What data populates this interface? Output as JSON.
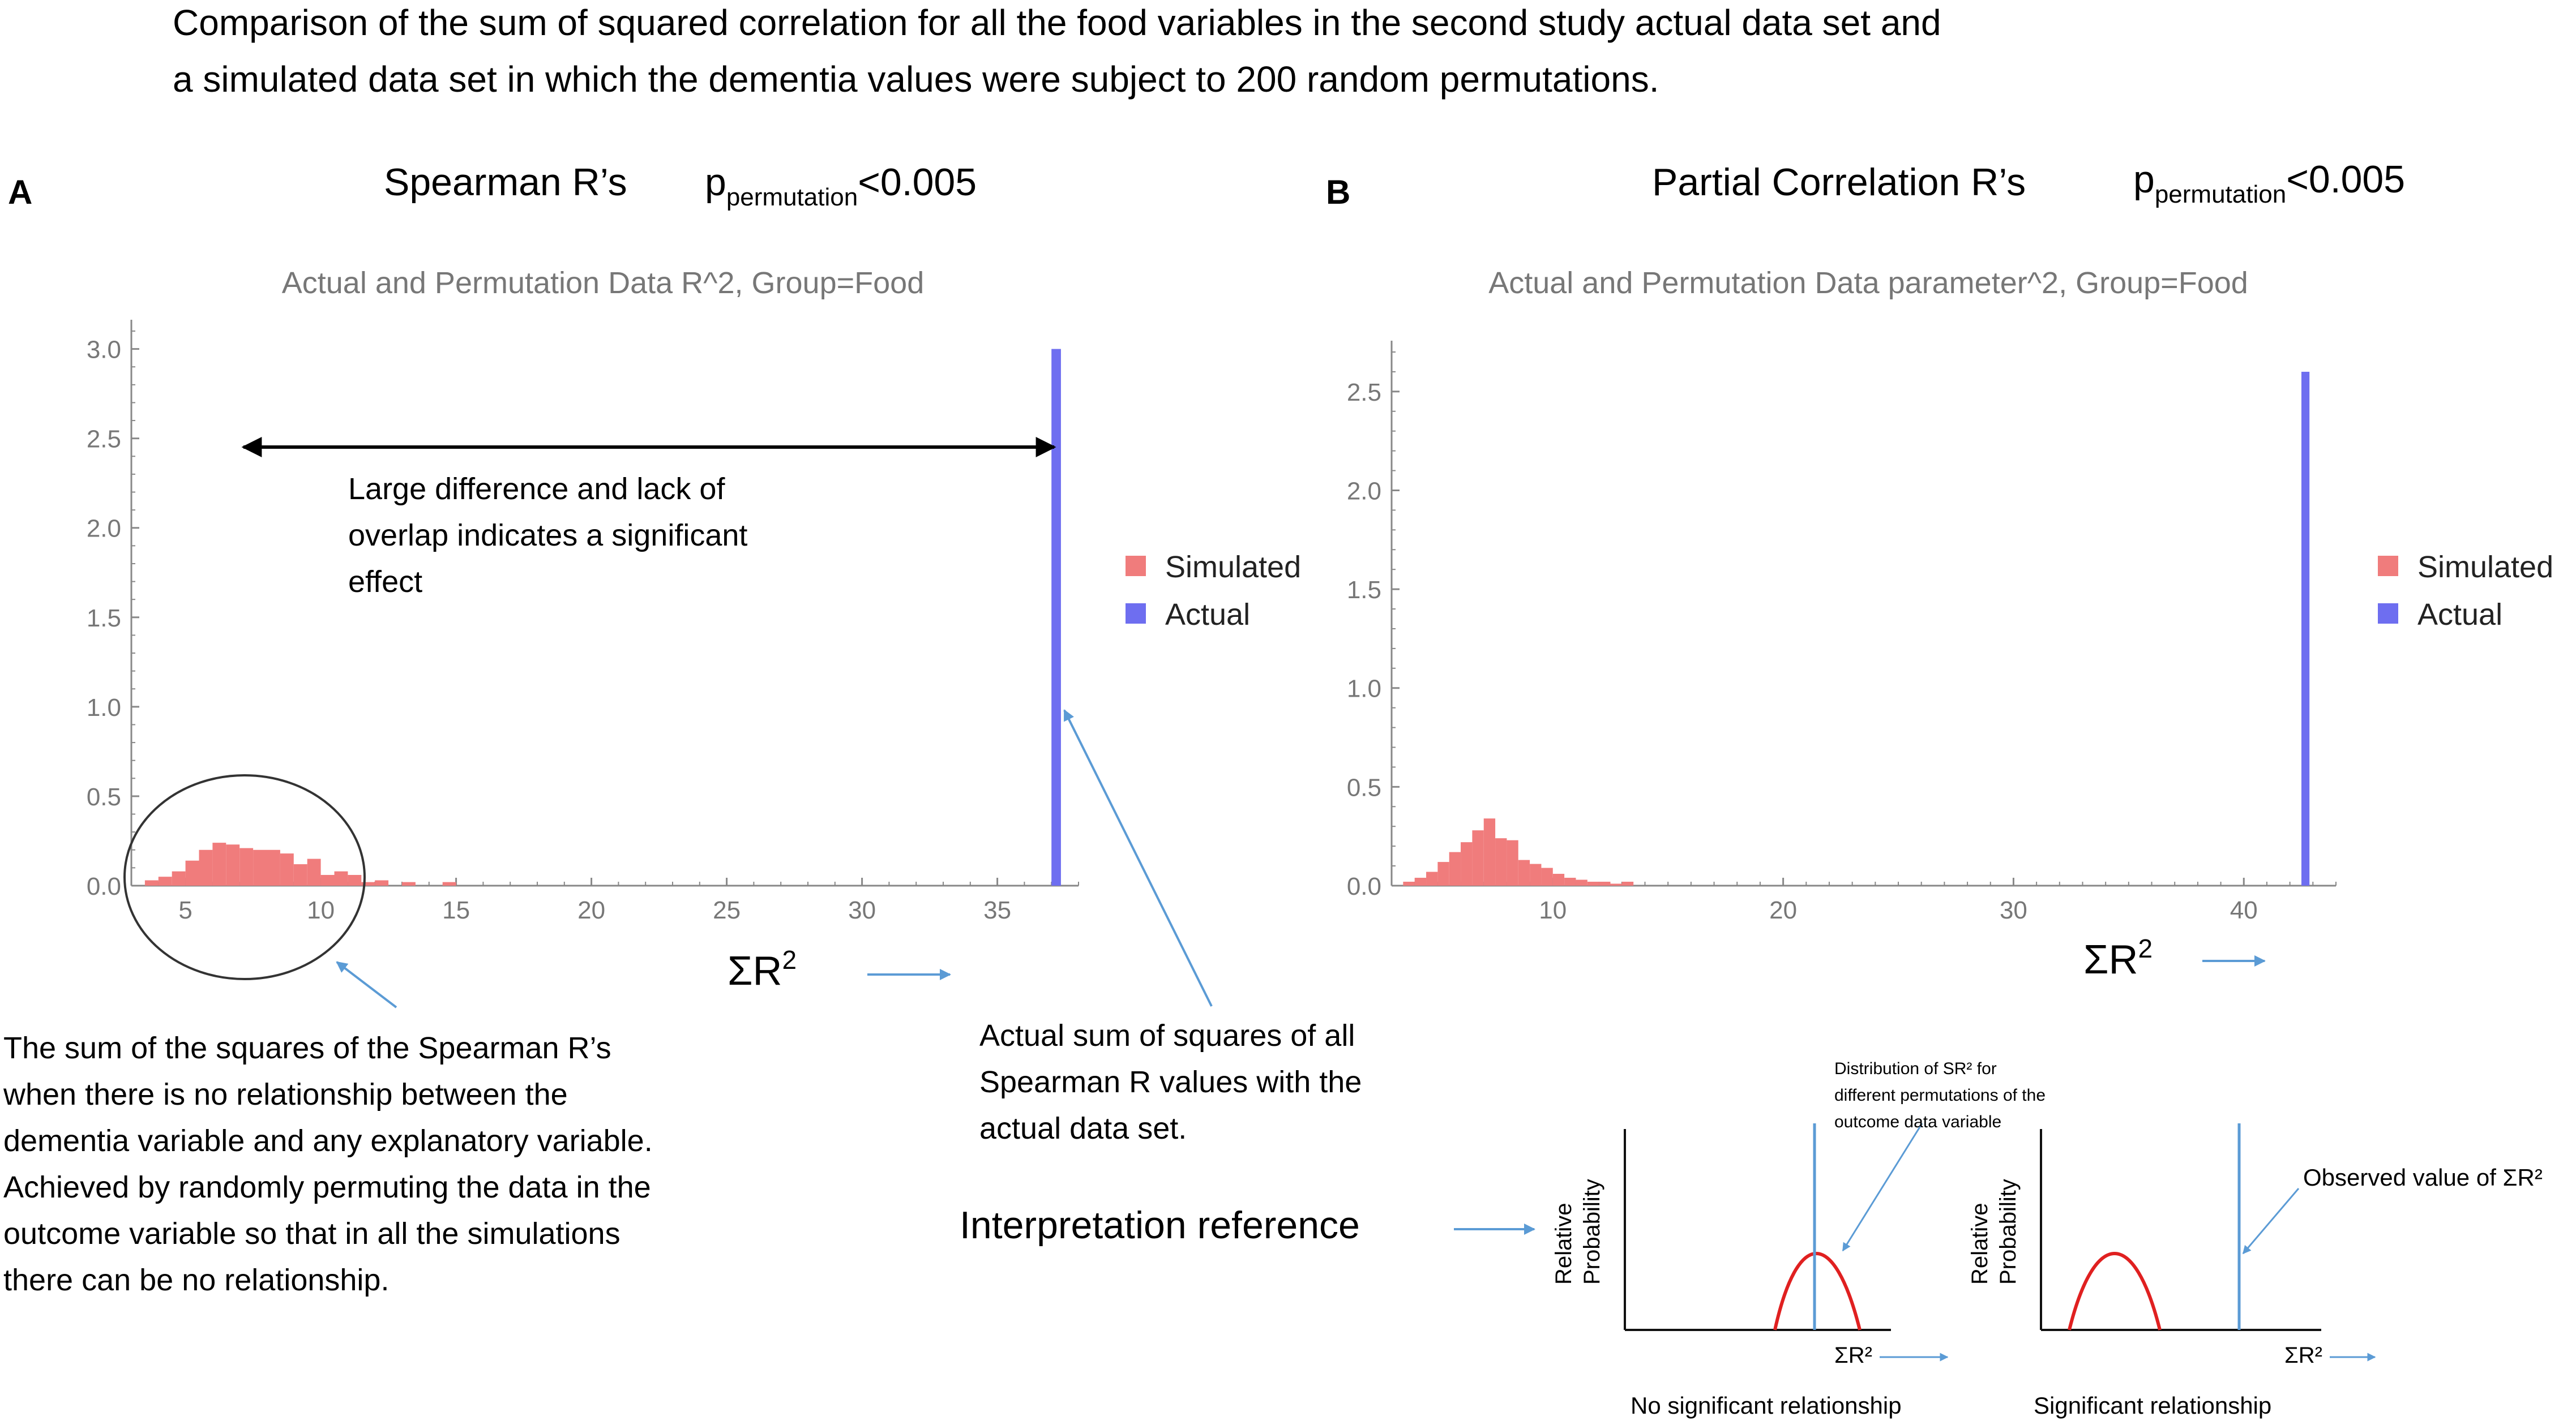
{
  "figure": {
    "title_line1": "Comparison of the sum of squared correlation for all the food variables in the second study actual data set and",
    "title_line2": "a simulated data set in which the dementia values were subject to 200 random permutations.",
    "colors": {
      "simulated": "#f07c7c",
      "actual": "#6e6ef0",
      "annotation": "#5b9bd5",
      "curve": "#e02020",
      "axis": "#888888"
    }
  },
  "panel_a": {
    "letter": "A",
    "heading": "Spearman R’s",
    "p_prefix": "p",
    "p_subscript": "permutation",
    "p_value": "<0.005",
    "sigma_label": "ΣR",
    "sigma_exp": "2",
    "arrow_note": [
      "Large difference and lack of",
      "overlap indicates a significant",
      "effect"
    ],
    "null_note": [
      "The sum of the squares of the Spearman R’s",
      "when there is no relationship between the",
      "dementia variable and any explanatory variable.",
      "Achieved by randomly permuting the data in the",
      "outcome variable so that in all the simulations",
      "there can be no relationship."
    ],
    "actual_note": [
      "Actual sum of squares of all",
      "Spearman R values with the",
      "actual data set."
    ]
  },
  "panel_b": {
    "letter": "B",
    "heading": "Partial Correlation R’s",
    "p_prefix": "p",
    "p_subscript": "permutation",
    "p_value": "<0.005",
    "sigma_label": "ΣR",
    "sigma_exp": "2"
  },
  "interpretation": {
    "label": "Interpretation reference",
    "ylabel_line1": "Relative",
    "ylabel_line2": "Probability",
    "distribution_note": [
      "Distribution of SR² for",
      "different permutations of the",
      "outcome data variable"
    ],
    "observed_note": "Observed value of  ΣR²",
    "sigma_label": "ΣR²",
    "caption_left": "No significant relationship",
    "caption_right": "Significant relationship"
  },
  "chart_data": [
    {
      "type": "bar",
      "title": "Actual and Permutation Data R^2, Group=Food",
      "xlabel": "",
      "ylabel": "",
      "xlim": [
        3,
        38
      ],
      "ylim": [
        0,
        3.1
      ],
      "x_ticks": [
        5,
        10,
        15,
        20,
        25,
        30,
        35
      ],
      "y_ticks": [
        0.0,
        0.5,
        1.0,
        1.5,
        2.0,
        2.5,
        3.0
      ],
      "legend": "right",
      "series": [
        {
          "name": "Simulated",
          "bin_width": 0.5,
          "bins": [
            [
              3.5,
              0.03
            ],
            [
              4.0,
              0.05
            ],
            [
              4.5,
              0.08
            ],
            [
              5.0,
              0.14
            ],
            [
              5.5,
              0.2
            ],
            [
              6.0,
              0.24
            ],
            [
              6.5,
              0.23
            ],
            [
              7.0,
              0.21
            ],
            [
              7.5,
              0.2
            ],
            [
              8.0,
              0.2
            ],
            [
              8.5,
              0.18
            ],
            [
              9.0,
              0.12
            ],
            [
              9.5,
              0.15
            ],
            [
              10.0,
              0.06
            ],
            [
              10.5,
              0.08
            ],
            [
              11.0,
              0.06
            ],
            [
              11.5,
              0.02
            ],
            [
              12.0,
              0.03
            ],
            [
              13.0,
              0.02
            ],
            [
              14.5,
              0.02
            ]
          ]
        },
        {
          "name": "Actual",
          "bins": [
            [
              37.0,
              3.0
            ]
          ],
          "bin_width": 0.35
        }
      ]
    },
    {
      "type": "bar",
      "title": "Actual and Permutation Data parameter^2, Group=Food",
      "xlabel": "",
      "ylabel": "",
      "xlim": [
        3,
        44
      ],
      "ylim": [
        0,
        2.7
      ],
      "x_ticks": [
        10,
        20,
        30,
        40
      ],
      "y_ticks": [
        0.0,
        0.5,
        1.0,
        1.5,
        2.0,
        2.5
      ],
      "legend": "right",
      "series": [
        {
          "name": "Simulated",
          "bin_width": 0.5,
          "bins": [
            [
              3.5,
              0.02
            ],
            [
              4.0,
              0.04
            ],
            [
              4.5,
              0.07
            ],
            [
              5.0,
              0.12
            ],
            [
              5.5,
              0.17
            ],
            [
              6.0,
              0.22
            ],
            [
              6.5,
              0.28
            ],
            [
              7.0,
              0.34
            ],
            [
              7.5,
              0.24
            ],
            [
              8.0,
              0.23
            ],
            [
              8.5,
              0.13
            ],
            [
              9.0,
              0.11
            ],
            [
              9.5,
              0.09
            ],
            [
              10.0,
              0.06
            ],
            [
              10.5,
              0.04
            ],
            [
              11.0,
              0.03
            ],
            [
              11.5,
              0.02
            ],
            [
              12.0,
              0.02
            ],
            [
              12.5,
              0.01
            ],
            [
              13.0,
              0.02
            ]
          ]
        },
        {
          "name": "Actual",
          "bins": [
            [
              42.5,
              2.6
            ]
          ],
          "bin_width": 0.35
        }
      ]
    }
  ]
}
